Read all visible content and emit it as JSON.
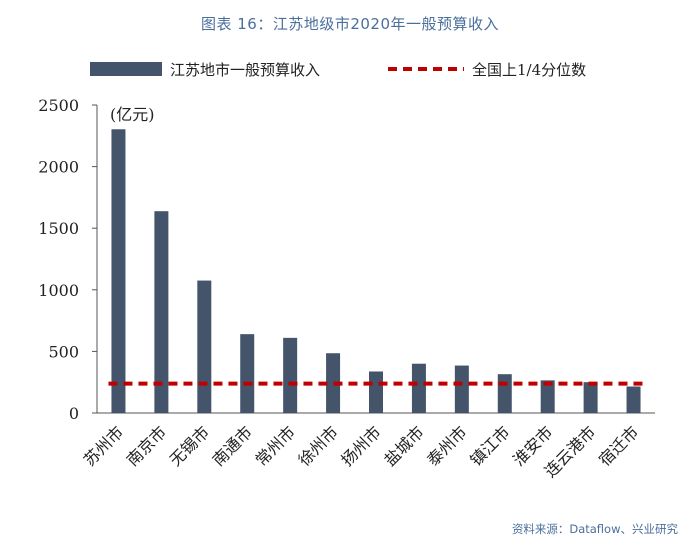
{
  "chart_data": {
    "type": "bar",
    "title": "图表 16：江苏地级市2020年一般预算收入",
    "unit_label": "(亿元)",
    "categories": [
      "苏州市",
      "南京市",
      "无锡市",
      "南通市",
      "常州市",
      "徐州市",
      "扬州市",
      "盐城市",
      "泰州市",
      "镇江市",
      "淮安市",
      "连云港市",
      "宿迁市"
    ],
    "series": [
      {
        "name": "江苏地市一般预算收入",
        "values": [
          2303,
          1638,
          1075,
          640,
          610,
          485,
          337,
          400,
          385,
          315,
          265,
          250,
          215
        ],
        "color": "#44546a"
      },
      {
        "name": "全国上1/4分位数",
        "values": [
          238,
          238,
          238,
          238,
          238,
          238,
          238,
          238,
          238,
          238,
          238,
          238,
          238
        ],
        "color": "#c00000",
        "style": "dashed"
      }
    ],
    "ylim": [
      0,
      2500
    ],
    "yticks": [
      0,
      500,
      1000,
      1500,
      2000,
      2500
    ],
    "xlabel": "",
    "ylabel": "",
    "legend_position": "top"
  },
  "source": "资料来源：Dataflow、兴业研究"
}
